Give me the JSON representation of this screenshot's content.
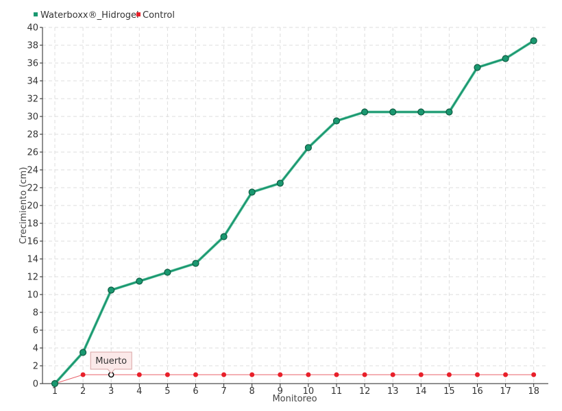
{
  "chart_data": {
    "type": "line",
    "title": "",
    "xlabel": "Monitoreo",
    "ylabel": "Crecimiento (cm)",
    "categories": [
      "1",
      "2",
      "3",
      "4",
      "5",
      "6",
      "7",
      "8",
      "9",
      "10",
      "11",
      "12",
      "13",
      "14",
      "15",
      "16",
      "17",
      "18"
    ],
    "ylim": [
      0,
      40
    ],
    "y_ticks": [
      0,
      2,
      4,
      6,
      8,
      10,
      12,
      14,
      16,
      18,
      20,
      22,
      24,
      26,
      28,
      30,
      32,
      34,
      36,
      38,
      40
    ],
    "grid": true,
    "legend_position": "top-left",
    "series": [
      {
        "name": "Waterboxx®_Hidrogel",
        "color": "#1a9870",
        "values": [
          0,
          3.5,
          10.5,
          11.5,
          12.5,
          13.5,
          16.5,
          21.5,
          22.5,
          26.5,
          29.5,
          30.5,
          30.5,
          30.5,
          30.5,
          35.5,
          36.5,
          38.5
        ]
      },
      {
        "name": "Control",
        "color": "#e8202a",
        "values": [
          0,
          1,
          1,
          1,
          1,
          1,
          1,
          1,
          1,
          1,
          1,
          1,
          1,
          1,
          1,
          1,
          1,
          1
        ]
      }
    ],
    "annotations": [
      {
        "text": "Muerto",
        "series": "Control",
        "category": "3",
        "value": 1
      }
    ]
  }
}
